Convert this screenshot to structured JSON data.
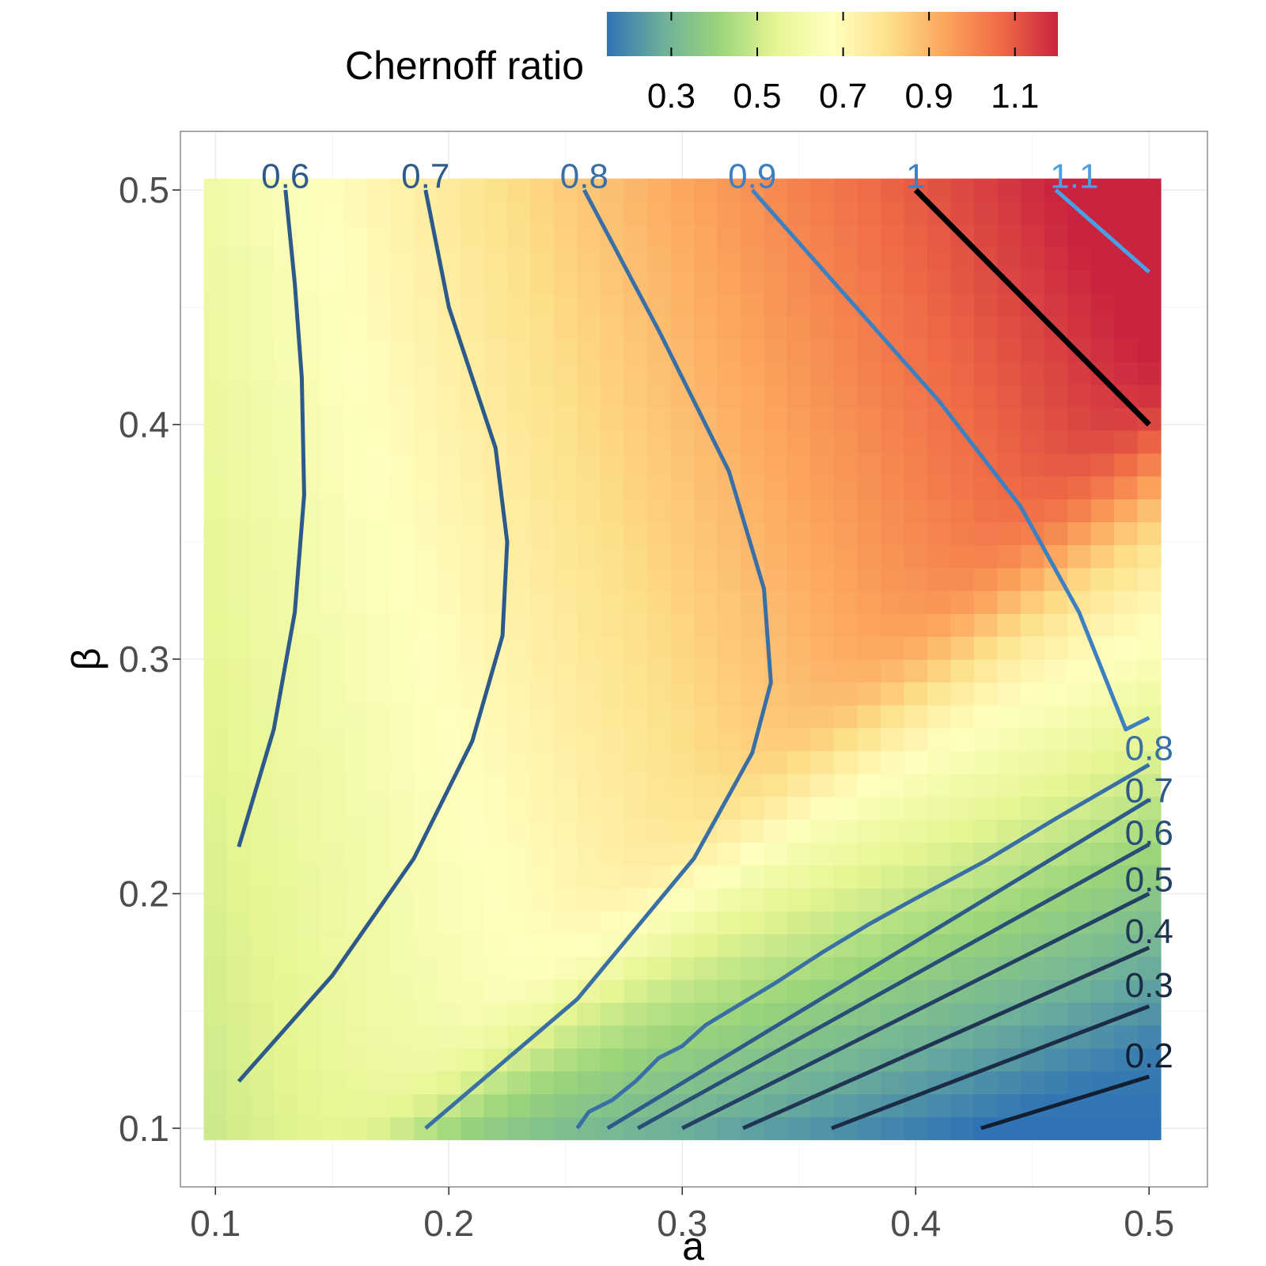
{
  "chart_data": {
    "type": "heatmap",
    "xlabel": "a",
    "ylabel": "β",
    "xlim": [
      0.085,
      0.525
    ],
    "ylim": [
      0.075,
      0.525
    ],
    "x_ticks": [
      "0.1",
      "0.2",
      "0.3",
      "0.4",
      "0.5"
    ],
    "y_ticks": [
      "0.1",
      "0.2",
      "0.3",
      "0.4",
      "0.5"
    ],
    "grid": true,
    "legend": {
      "title": "Chernoff ratio",
      "position": "top",
      "range": [
        0.15,
        1.2
      ],
      "ticks": [
        "0.3",
        "0.5",
        "0.7",
        "0.9",
        "1.1"
      ],
      "colors": [
        "#2f73b5",
        "#6fb09a",
        "#9ad57a",
        "#e6f593",
        "#ffffbf",
        "#fde08b",
        "#fca55d",
        "#ef6a45",
        "#c9243f"
      ]
    },
    "contours": [
      {
        "level": "0.6",
        "color": "#2d5a8a",
        "points": [
          [
            0.11,
            0.22
          ],
          [
            0.125,
            0.27
          ],
          [
            0.134,
            0.32
          ],
          [
            0.138,
            0.37
          ],
          [
            0.137,
            0.42
          ],
          [
            0.134,
            0.46
          ],
          [
            0.13,
            0.5
          ]
        ]
      },
      {
        "level": "0.7",
        "color": "#2d5a8a",
        "points": [
          [
            0.11,
            0.12
          ],
          [
            0.15,
            0.165
          ],
          [
            0.185,
            0.215
          ],
          [
            0.21,
            0.265
          ],
          [
            0.223,
            0.31
          ],
          [
            0.225,
            0.35
          ],
          [
            0.22,
            0.39
          ],
          [
            0.2,
            0.45
          ],
          [
            0.19,
            0.5
          ]
        ]
      },
      {
        "level": "0.8",
        "color": "#3a6fa6",
        "points": [
          [
            0.19,
            0.1
          ],
          [
            0.255,
            0.155
          ],
          [
            0.305,
            0.215
          ],
          [
            0.33,
            0.26
          ],
          [
            0.338,
            0.29
          ],
          [
            0.335,
            0.33
          ],
          [
            0.32,
            0.38
          ],
          [
            0.29,
            0.44
          ],
          [
            0.258,
            0.5
          ]
        ]
      },
      {
        "level": "0.9",
        "color": "#3d80c2",
        "points": [
          [
            0.33,
            0.5
          ],
          [
            0.37,
            0.455
          ],
          [
            0.41,
            0.41
          ],
          [
            0.445,
            0.365
          ],
          [
            0.47,
            0.32
          ],
          [
            0.49,
            0.27
          ],
          [
            0.5,
            0.275
          ]
        ]
      },
      {
        "level": "1",
        "color": "#000000",
        "points": [
          [
            0.4,
            0.5
          ],
          [
            0.5,
            0.4
          ]
        ]
      },
      {
        "level": "1.1",
        "color": "#4a9fe6",
        "points": [
          [
            0.46,
            0.5
          ],
          [
            0.5,
            0.465
          ]
        ]
      },
      {
        "level": "0.8",
        "color": "#3a6fa6",
        "points": [
          [
            0.255,
            0.1
          ],
          [
            0.26,
            0.107
          ],
          [
            0.27,
            0.112
          ],
          [
            0.28,
            0.12
          ],
          [
            0.29,
            0.13
          ],
          [
            0.3,
            0.135
          ],
          [
            0.31,
            0.144
          ],
          [
            0.32,
            0.15
          ],
          [
            0.34,
            0.162
          ],
          [
            0.36,
            0.175
          ],
          [
            0.38,
            0.187
          ],
          [
            0.4,
            0.198
          ],
          [
            0.43,
            0.214
          ],
          [
            0.46,
            0.232
          ],
          [
            0.5,
            0.255
          ]
        ]
      },
      {
        "level": "0.7",
        "color": "#2d5a8a",
        "points": [
          [
            0.268,
            0.1
          ],
          [
            0.5,
            0.24
          ]
        ]
      },
      {
        "level": "0.6",
        "color": "#284e78",
        "points": [
          [
            0.281,
            0.1
          ],
          [
            0.5,
            0.221
          ]
        ]
      },
      {
        "level": "0.5",
        "color": "#233f63",
        "points": [
          [
            0.3,
            0.1
          ],
          [
            0.5,
            0.2
          ]
        ]
      },
      {
        "level": "0.4",
        "color": "#1f3552",
        "points": [
          [
            0.326,
            0.1
          ],
          [
            0.5,
            0.177
          ]
        ]
      },
      {
        "level": "0.3",
        "color": "#1b2c44",
        "points": [
          [
            0.364,
            0.1
          ],
          [
            0.5,
            0.152
          ]
        ]
      },
      {
        "level": "0.2",
        "color": "#131f30",
        "points": [
          [
            0.428,
            0.1
          ],
          [
            0.5,
            0.122
          ]
        ]
      }
    ],
    "contour_labels": [
      {
        "text": "0.6",
        "x": 0.13,
        "y": 0.506,
        "color": "#2d5a8a"
      },
      {
        "text": "0.7",
        "x": 0.19,
        "y": 0.506,
        "color": "#2d5a8a"
      },
      {
        "text": "0.8",
        "x": 0.258,
        "y": 0.506,
        "color": "#3a6fa6"
      },
      {
        "text": "0.9",
        "x": 0.33,
        "y": 0.506,
        "color": "#3d80c2"
      },
      {
        "text": "1",
        "x": 0.4,
        "y": 0.506,
        "color": "#3d80c2"
      },
      {
        "text": "1.1",
        "x": 0.468,
        "y": 0.506,
        "color": "#4a9fe6"
      },
      {
        "text": "0.8",
        "x": 0.5,
        "y": 0.262,
        "color": "#3a6fa6"
      },
      {
        "text": "0.7",
        "x": 0.5,
        "y": 0.244,
        "color": "#2d5a8a"
      },
      {
        "text": "0.6",
        "x": 0.5,
        "y": 0.226,
        "color": "#284e78"
      },
      {
        "text": "0.5",
        "x": 0.5,
        "y": 0.206,
        "color": "#233f63"
      },
      {
        "text": "0.4",
        "x": 0.5,
        "y": 0.184,
        "color": "#1f3552"
      },
      {
        "text": "0.3",
        "x": 0.5,
        "y": 0.161,
        "color": "#1b2c44"
      },
      {
        "text": "0.2",
        "x": 0.5,
        "y": 0.131,
        "color": "#131f30"
      }
    ]
  }
}
